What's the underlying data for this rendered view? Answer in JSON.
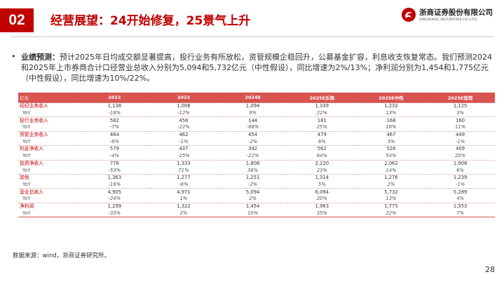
{
  "header": {
    "section_number": "02",
    "title": "经营展望：24开始修复，25景气上升",
    "logo_cn": "浙商证券股份有限公司",
    "logo_en": "ZHESHANG SECURITIES CO.,LTD",
    "brand_color": "#c00000"
  },
  "summary": {
    "bullet": "•",
    "label": "业绩预测：",
    "text_1": "预计2025年日均成交额显著提高，投行业务有所放松，资管规模企稳回升，公募基金扩容，利息收支恢复常态。我们预测2024和2025年上市券商合计口径营业总收入分别为5,094和5,732亿元（中性假设），同比增速为2%/13%；净利润分别为1,454和1,775亿元（中性假设），同比增速为10%/22%。"
  },
  "table": {
    "header_color": "#d9534f",
    "columns": [
      "亿元",
      "2022",
      "2023",
      "2024E",
      "2025E乐观",
      "2025E中性",
      "2025E悲观"
    ],
    "rows": [
      {
        "type": "main",
        "cells": [
          "经纪业务收入",
          "1,138",
          "1,006",
          "1,094",
          "1,339",
          "1,232",
          "1,125"
        ]
      },
      {
        "type": "yoy",
        "cells": [
          "YoY",
          "-18%",
          "-12%",
          "9%",
          "22%",
          "13%",
          "3%"
        ]
      },
      {
        "type": "main",
        "cells": [
          "投行业务收入",
          "582",
          "456",
          "144",
          "181",
          "168",
          "160"
        ]
      },
      {
        "type": "yoy",
        "cells": [
          "YoY",
          "-7%",
          "-22%",
          "-68%",
          "25%",
          "16%",
          "11%"
        ]
      },
      {
        "type": "main",
        "cells": [
          "资管业务收入",
          "464",
          "462",
          "454",
          "479",
          "467",
          "449"
        ]
      },
      {
        "type": "yoy",
        "cells": [
          "YoY",
          "-6%",
          "-1%",
          "-2%",
          "6%",
          "3%",
          "-1%"
        ]
      },
      {
        "type": "main",
        "cells": [
          "利息净收入",
          "579",
          "437",
          "342",
          "562",
          "526",
          "409"
        ]
      },
      {
        "type": "yoy",
        "cells": [
          "YoY",
          "-4%",
          "-25%",
          "-22%",
          "64%",
          "54%",
          "20%"
        ]
      },
      {
        "type": "main",
        "cells": [
          "投资净收入",
          "778",
          "1,333",
          "1,808",
          "2,220",
          "2,062",
          "1,908"
        ]
      },
      {
        "type": "yoy",
        "cells": [
          "YoY",
          "-53%",
          "71%",
          "36%",
          "23%",
          "14%",
          "6%"
        ]
      },
      {
        "type": "main",
        "cells": [
          "其他",
          "1,363",
          "1,277",
          "1,251",
          "1,314",
          "1,276",
          "1,239"
        ]
      },
      {
        "type": "yoy",
        "cells": [
          "YoY",
          "-16%",
          "-6%",
          "-2%",
          "5%",
          "2%",
          "-1%"
        ]
      },
      {
        "type": "main",
        "cells": [
          "营业总收入",
          "4,905",
          "4,971",
          "5,094",
          "6,094",
          "5,732",
          "5,289"
        ]
      },
      {
        "type": "yoy",
        "cells": [
          "YoY",
          "-24%",
          "1%",
          "2%",
          "20%",
          "13%",
          "4%"
        ]
      },
      {
        "type": "main",
        "cells": [
          "净利润",
          "1,299",
          "1,322",
          "1,454",
          "1,963",
          "1,775",
          "1,553"
        ]
      },
      {
        "type": "yoy",
        "cells": [
          "YoY",
          "-35%",
          "2%",
          "10%",
          "35%",
          "22%",
          "7%"
        ]
      }
    ]
  },
  "footer": {
    "source": "数据来源：wind，浙商证券研究所。",
    "page": "28"
  }
}
